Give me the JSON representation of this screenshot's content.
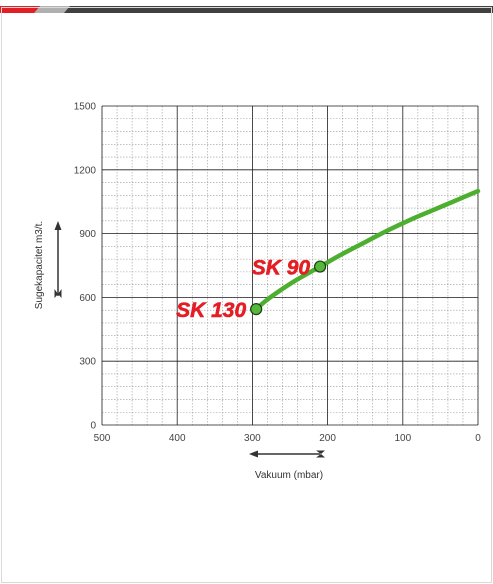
{
  "colors": {
    "accent": "#e31e24",
    "curve": "#4caf2f",
    "marker_fill": "#56b83a",
    "topbar_dark": "#404040"
  },
  "chart_data": {
    "type": "line",
    "title": "",
    "xlabel": "Vakuum (mbar)",
    "ylabel": "Sugekapacitet m3/t.",
    "x_reversed": true,
    "xlim": [
      500,
      0
    ],
    "ylim": [
      0,
      1500
    ],
    "x_major_ticks": [
      500,
      400,
      300,
      200,
      100,
      0
    ],
    "y_major_ticks": [
      0,
      300,
      600,
      900,
      1200,
      1500
    ],
    "x_minor_step": 20,
    "y_minor_step": 60,
    "grid": true,
    "series": [
      {
        "x": [
          295,
          280,
          260,
          240,
          210,
          180,
          150,
          120,
          90,
          60,
          30,
          0
        ],
        "y": [
          545,
          590,
          640,
          685,
          745,
          805,
          860,
          915,
          965,
          1010,
          1055,
          1100
        ]
      }
    ],
    "annotations": [
      {
        "text": "SK 90",
        "x": 210,
        "y": 745
      },
      {
        "text": "SK 130",
        "x": 295,
        "y": 545
      }
    ]
  }
}
